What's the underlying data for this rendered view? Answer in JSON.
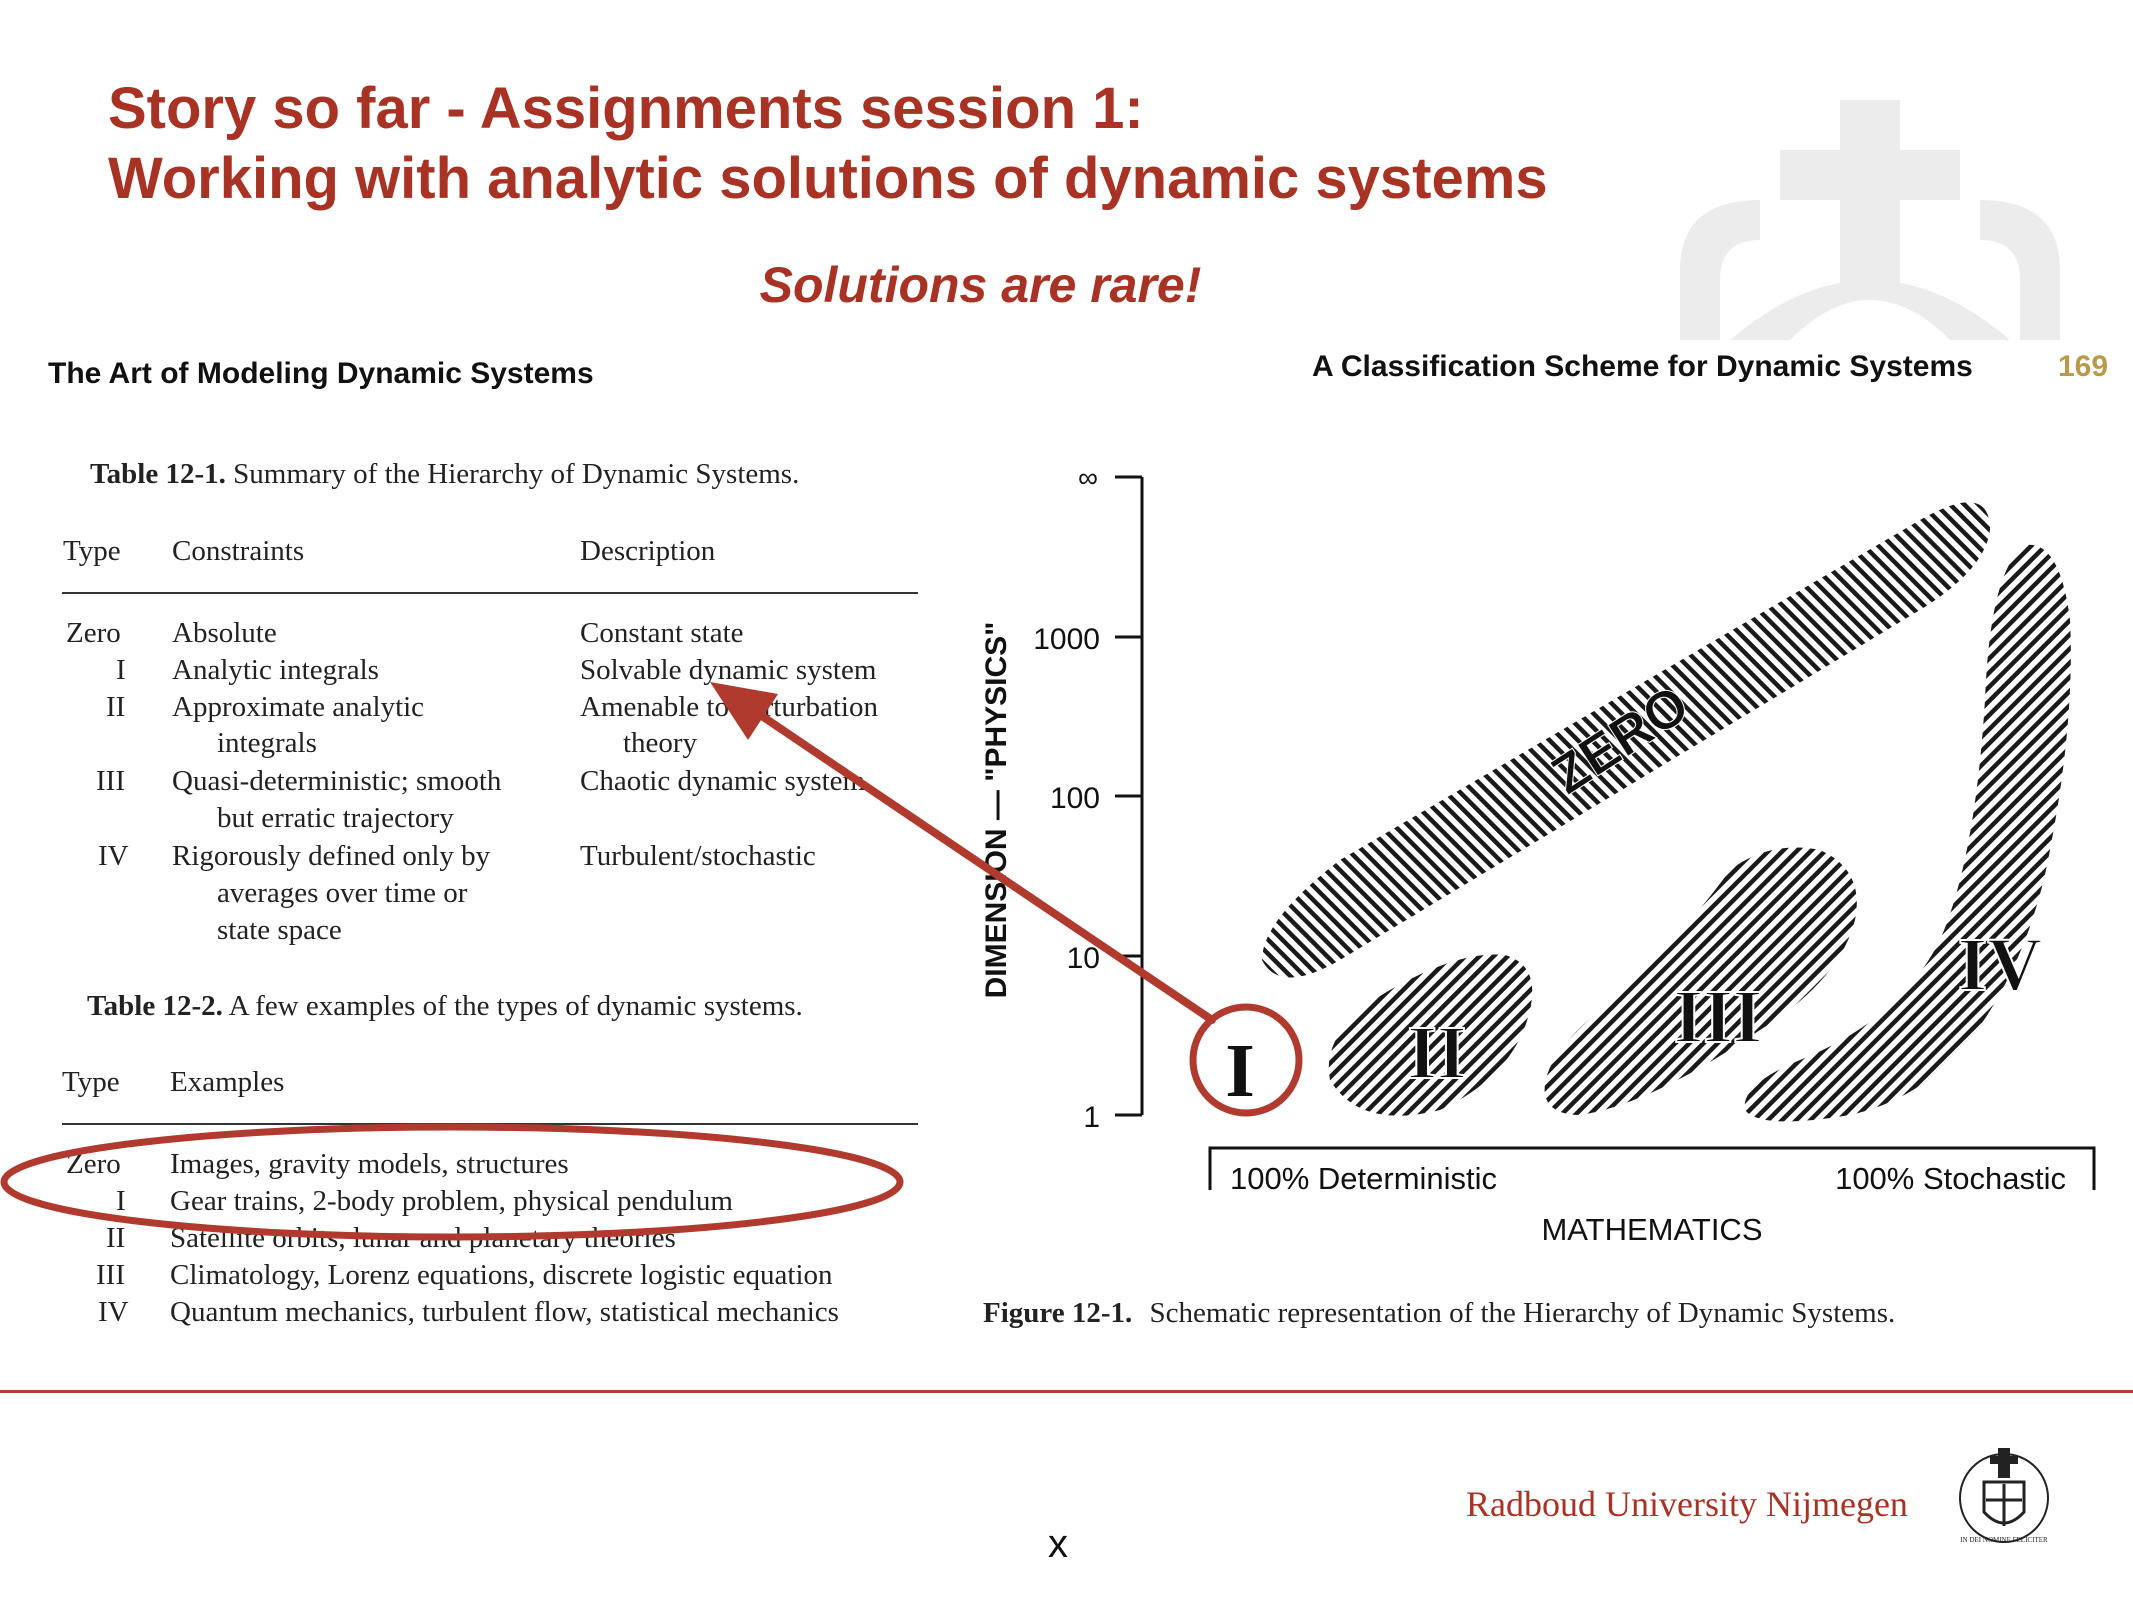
{
  "slide": {
    "title_line1": "Story so far - Assignments session 1:",
    "title_line2": "Working with analytic solutions of dynamic systems",
    "subtitle": "Solutions are rare!"
  },
  "book": {
    "left_header": "The Art of Modeling Dynamic Systems",
    "right_header": "A Classification Scheme for Dynamic Systems",
    "page_number": "169"
  },
  "table1": {
    "caption_label": "Table 12-1.",
    "caption_text": "Summary of the Hierarchy of Dynamic Systems.",
    "headers": [
      "Type",
      "Constraints",
      "Description"
    ],
    "rows": [
      {
        "type": "Zero",
        "constraints": [
          "Absolute"
        ],
        "description": [
          "Constant state"
        ]
      },
      {
        "type": "I",
        "constraints": [
          "Analytic integrals"
        ],
        "description": [
          "Solvable dynamic system"
        ]
      },
      {
        "type": "II",
        "constraints": [
          "Approximate analytic",
          "integrals"
        ],
        "description": [
          "Amenable to perturbation",
          "theory"
        ]
      },
      {
        "type": "III",
        "constraints": [
          "Quasi-deterministic; smooth",
          "but erratic trajectory"
        ],
        "description": [
          "Chaotic dynamic system"
        ]
      },
      {
        "type": "IV",
        "constraints": [
          "Rigorously defined only by",
          "averages over time or",
          "state space"
        ],
        "description": [
          "Turbulent/stochastic"
        ]
      }
    ]
  },
  "table2": {
    "caption_label": "Table 12-2.",
    "caption_text": "A few examples of the types of dynamic systems.",
    "headers": [
      "Type",
      "Examples"
    ],
    "rows": [
      {
        "type": "Zero",
        "examples": "Images, gravity models, structures"
      },
      {
        "type": "I",
        "examples": "Gear trains, 2-body problem, physical pendulum"
      },
      {
        "type": "II",
        "examples": "Satellite orbits, lunar and planetary theories"
      },
      {
        "type": "III",
        "examples": "Climatology, Lorenz equations, discrete logistic equation"
      },
      {
        "type": "IV",
        "examples": "Quantum mechanics, turbulent flow, statistical mechanics"
      }
    ]
  },
  "figure": {
    "y_axis_label": "DIMENSION — \"PHYSICS\"",
    "y_ticks": [
      "∞",
      "1000",
      "100",
      "10",
      "1"
    ],
    "x_left_label": "100% Deterministic",
    "x_right_label": "100% Stochastic",
    "x_axis_label": "MATHEMATICS",
    "regions": [
      "ZERO",
      "I",
      "II",
      "III",
      "IV"
    ],
    "caption_label": "Figure 12-1.",
    "caption_text": "Schematic representation of the Hierarchy of Dynamic Systems."
  },
  "footer": {
    "university": "Radboud University Nijmegen",
    "seal_text": "IN DEI NOMINE FELICITER",
    "slide_mark": "x"
  },
  "colors": {
    "accent": "#a83223",
    "annotation": "#b03a2e",
    "page_number": "#b89a4a"
  }
}
